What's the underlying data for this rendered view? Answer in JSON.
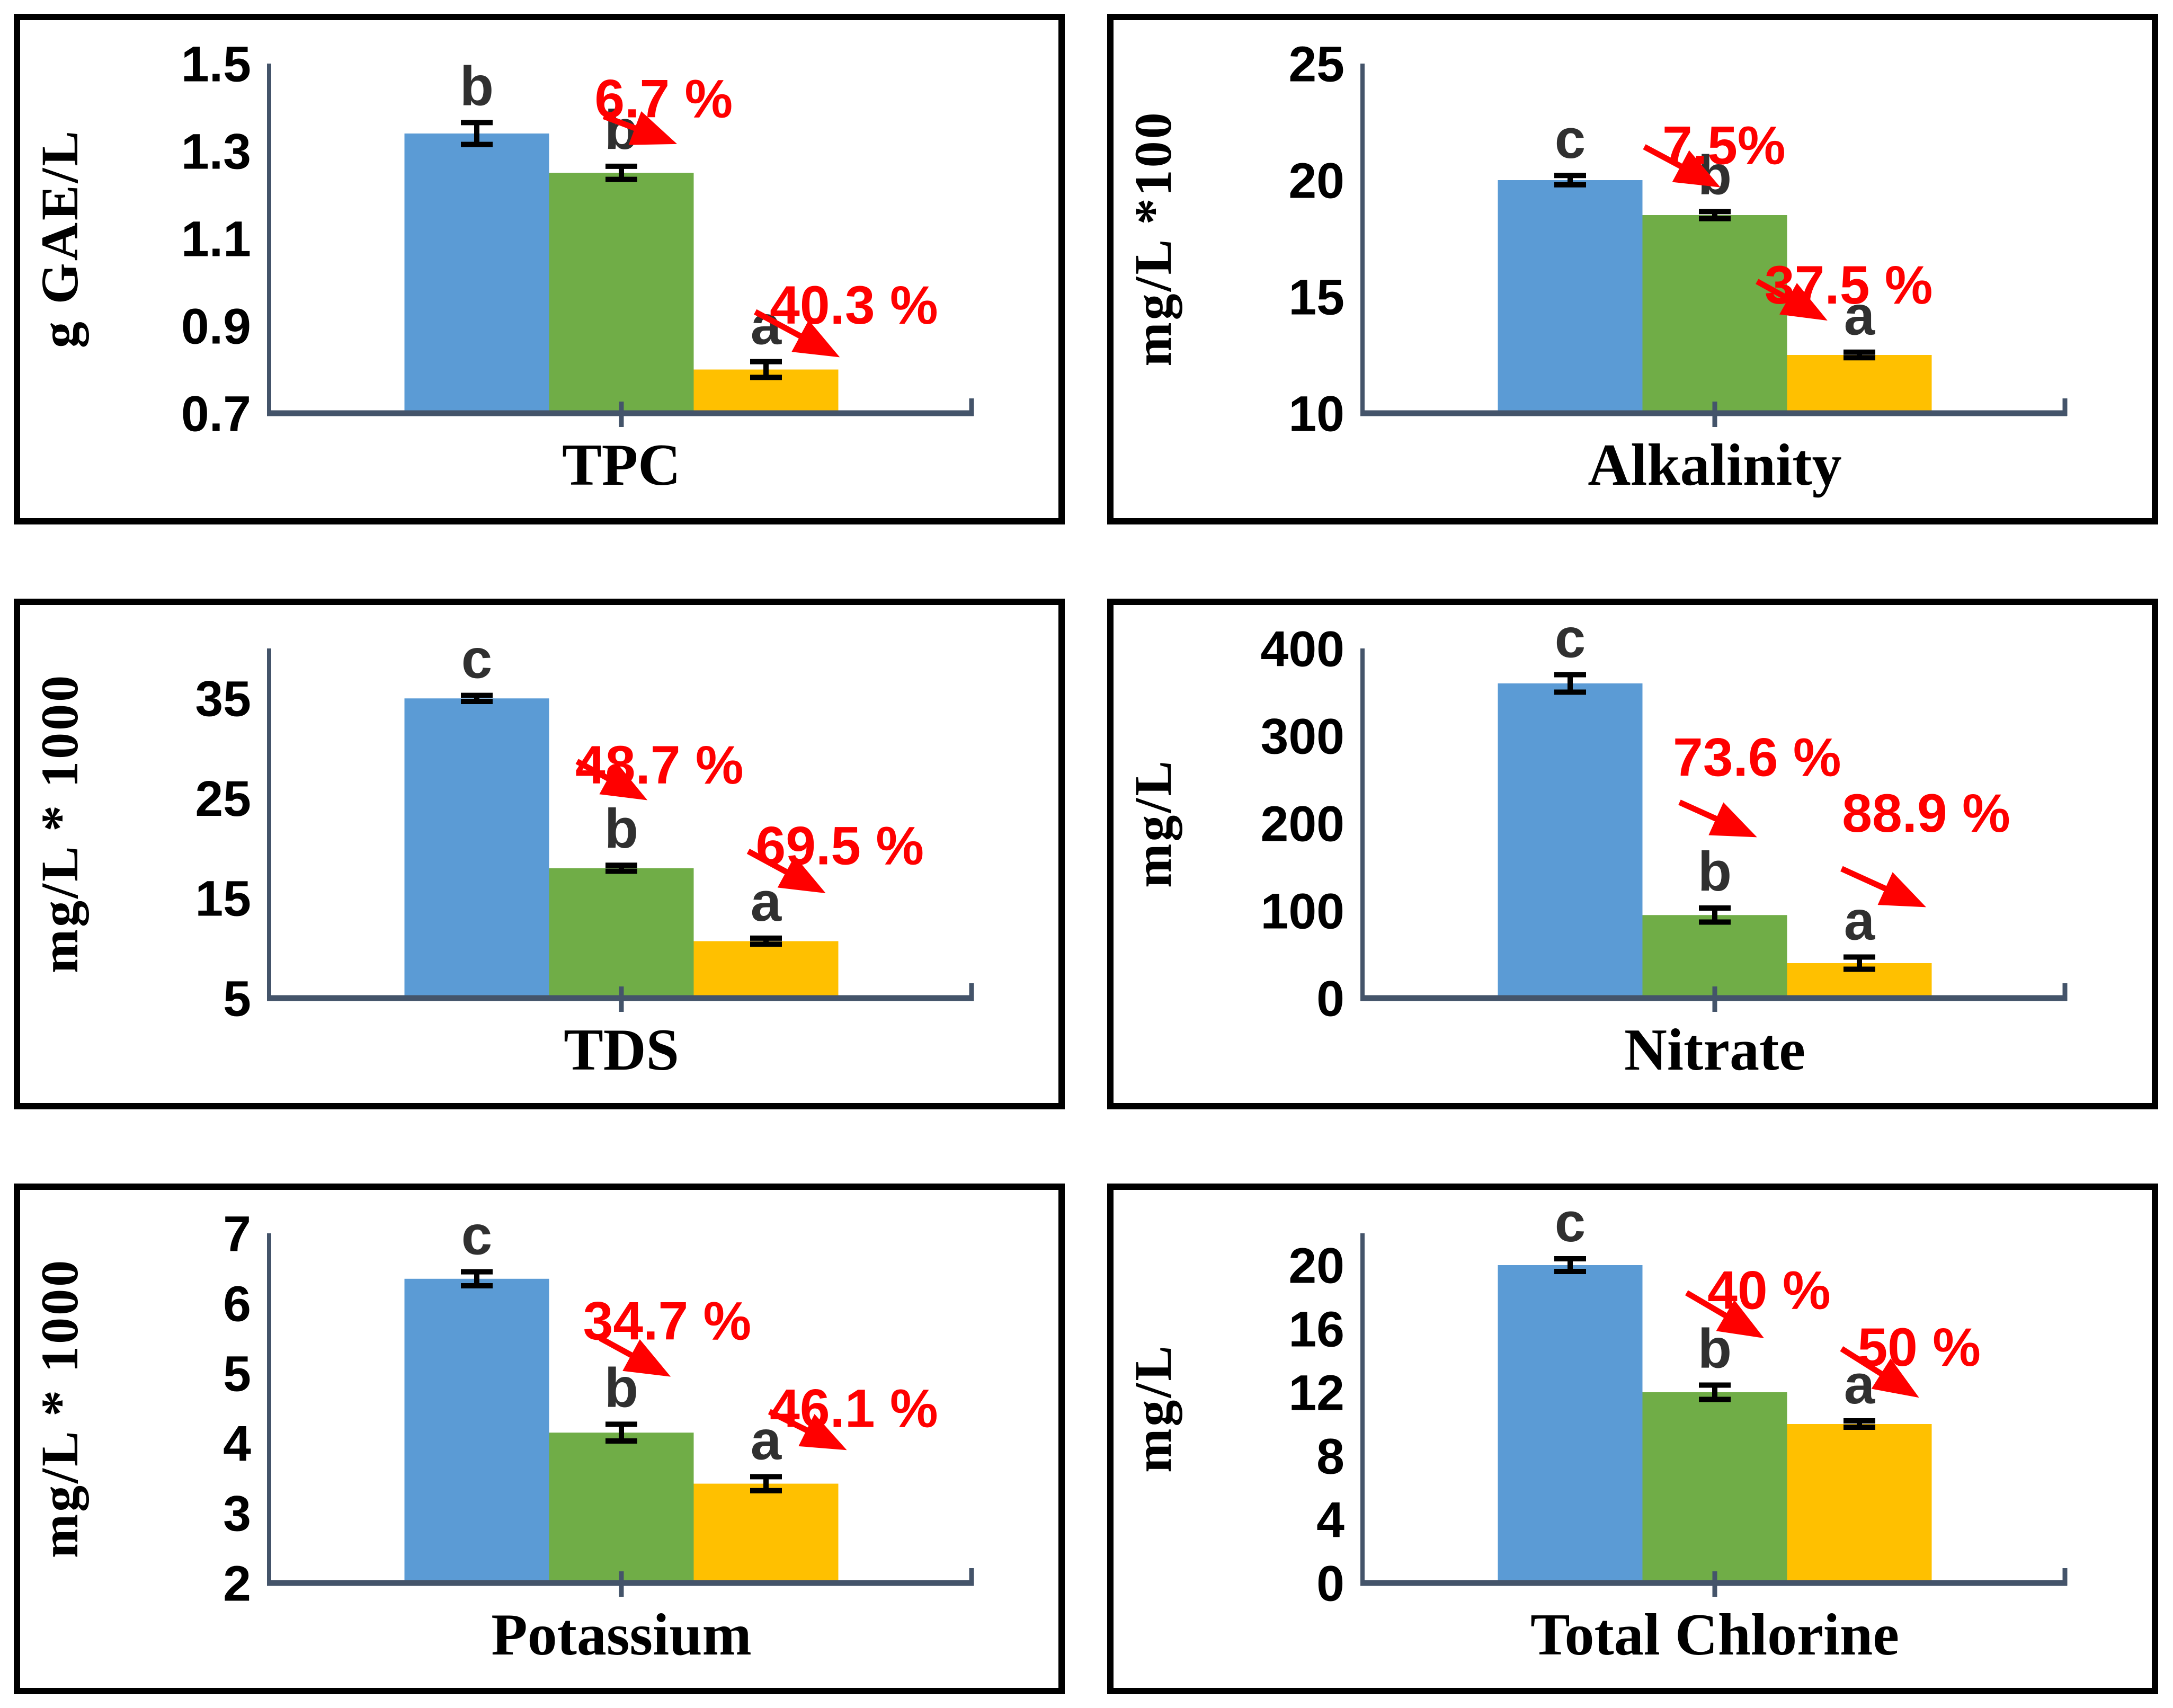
{
  "style": {
    "bar_colors": {
      "blue": "#5B9BD5",
      "green": "#70AD47",
      "orange": "#FFC000"
    },
    "axis_color": "#44546A",
    "error_bar_color": "#000000",
    "sig_letter_color": "#303030",
    "annotation_color": "#FF0000",
    "panel_border_color": "#000000",
    "background_color": "#FFFFFF"
  },
  "chart_data": [
    {
      "type": "bar",
      "xlabel": "TPC",
      "ylabel": "g GAE/L",
      "ylim": [
        0.7,
        1.5
      ],
      "yticks": [
        0.7,
        0.9,
        1.1,
        1.3,
        1.5
      ],
      "grid": false,
      "legend": "none",
      "bars": [
        {
          "color": "blue",
          "value": 1.34,
          "error": 0.025,
          "letter": "b"
        },
        {
          "color": "green",
          "value": 1.25,
          "error": 0.015,
          "letter": "b"
        },
        {
          "color": "orange",
          "value": 0.8,
          "error": 0.018,
          "letter": "a"
        }
      ],
      "annotations": [
        {
          "text": "6.7 %",
          "tx": 0.56,
          "ty": 0.1,
          "ax1": 0.475,
          "ay1": 0.151,
          "ax2": 0.579,
          "ay2": 0.23
        },
        {
          "text": "40.3 %",
          "tx": 0.83,
          "ty": 0.69,
          "ax1": 0.69,
          "ay1": 0.71,
          "ax2": 0.81,
          "ay2": 0.84
        }
      ]
    },
    {
      "type": "bar",
      "xlabel": "Alkalinity",
      "ylabel": "mg/L *100",
      "ylim": [
        10,
        25
      ],
      "yticks": [
        10,
        15,
        20,
        25
      ],
      "grid": false,
      "legend": "none",
      "bars": [
        {
          "color": "blue",
          "value": 20.0,
          "error": 0.2,
          "letter": "c"
        },
        {
          "color": "green",
          "value": 18.5,
          "error": 0.15,
          "letter": "b"
        },
        {
          "color": "orange",
          "value": 12.5,
          "error": 0.12,
          "letter": "a"
        }
      ],
      "annotations": [
        {
          "text": "7.5%",
          "tx": 0.513,
          "ty": 0.233,
          "ax1": 0.4,
          "ay1": 0.238,
          "ax2": 0.508,
          "ay2": 0.354
        },
        {
          "text": "37.5 %",
          "tx": 0.69,
          "ty": 0.632,
          "ax1": 0.56,
          "ay1": 0.623,
          "ax2": 0.66,
          "ay2": 0.735
        }
      ]
    },
    {
      "type": "bar",
      "xlabel": "TDS",
      "ylabel": "mg/L * 1000",
      "ylim": [
        5,
        40
      ],
      "yticks": [
        5,
        15,
        25,
        35
      ],
      "grid": false,
      "legend": "none",
      "bars": [
        {
          "color": "blue",
          "value": 35.0,
          "error": 0.3,
          "letter": "c"
        },
        {
          "color": "green",
          "value": 18.0,
          "error": 0.3,
          "letter": "b"
        },
        {
          "color": "orange",
          "value": 10.7,
          "error": 0.3,
          "letter": "a"
        }
      ],
      "annotations": [
        {
          "text": "48.7 %",
          "tx": 0.554,
          "ty": 0.332,
          "ax1": 0.437,
          "ay1": 0.323,
          "ax2": 0.537,
          "ay2": 0.434
        },
        {
          "text": "69.5 %",
          "tx": 0.81,
          "ty": 0.563,
          "ax1": 0.68,
          "ay1": 0.58,
          "ax2": 0.79,
          "ay2": 0.7
        }
      ]
    },
    {
      "type": "bar",
      "xlabel": "Nitrate",
      "ylabel": "mg/L",
      "ylim": [
        0,
        400
      ],
      "yticks": [
        0,
        100,
        200,
        300,
        400
      ],
      "grid": false,
      "legend": "none",
      "bars": [
        {
          "color": "blue",
          "value": 360,
          "error": 10,
          "letter": "c"
        },
        {
          "color": "green",
          "value": 95,
          "error": 8,
          "letter": "b"
        },
        {
          "color": "orange",
          "value": 40,
          "error": 7,
          "letter": "a"
        }
      ],
      "annotations": [
        {
          "text": "73.6 %",
          "tx": 0.56,
          "ty": 0.31,
          "ax1": 0.45,
          "ay1": 0.44,
          "ax2": 0.56,
          "ay2": 0.54
        },
        {
          "text": "88.9 %",
          "tx": 0.8,
          "ty": 0.47,
          "ax1": 0.68,
          "ay1": 0.63,
          "ax2": 0.8,
          "ay2": 0.74
        }
      ]
    },
    {
      "type": "bar",
      "xlabel": "Potassium",
      "ylabel": "mg/L * 1000",
      "ylim": [
        2,
        7
      ],
      "yticks": [
        2,
        3,
        4,
        5,
        6,
        7
      ],
      "grid": false,
      "legend": "none",
      "bars": [
        {
          "color": "blue",
          "value": 6.35,
          "error": 0.1,
          "letter": "c"
        },
        {
          "color": "green",
          "value": 4.15,
          "error": 0.12,
          "letter": "b"
        },
        {
          "color": "orange",
          "value": 3.42,
          "error": 0.1,
          "letter": "a"
        }
      ],
      "annotations": [
        {
          "text": "34.7 %",
          "tx": 0.565,
          "ty": 0.25,
          "ax1": 0.47,
          "ay1": 0.3,
          "ax2": 0.57,
          "ay2": 0.41
        },
        {
          "text": "46.1 %",
          "tx": 0.83,
          "ty": 0.5,
          "ax1": 0.71,
          "ay1": 0.51,
          "ax2": 0.82,
          "ay2": 0.62
        }
      ]
    },
    {
      "type": "bar",
      "xlabel": "Total Chlorine",
      "ylabel": "mg/L",
      "ylim": [
        0,
        22
      ],
      "yticks": [
        0,
        4,
        8,
        12,
        16,
        20
      ],
      "grid": false,
      "legend": "none",
      "bars": [
        {
          "color": "blue",
          "value": 20.0,
          "error": 0.4,
          "letter": "c"
        },
        {
          "color": "green",
          "value": 12.0,
          "error": 0.45,
          "letter": "b"
        },
        {
          "color": "orange",
          "value": 10.0,
          "error": 0.2,
          "letter": "a"
        }
      ],
      "annotations": [
        {
          "text": "40 %",
          "tx": 0.577,
          "ty": 0.162,
          "ax1": 0.46,
          "ay1": 0.17,
          "ax2": 0.57,
          "ay2": 0.3
        },
        {
          "text": "50 %",
          "tx": 0.79,
          "ty": 0.325,
          "ax1": 0.68,
          "ay1": 0.33,
          "ax2": 0.79,
          "ay2": 0.47
        }
      ]
    }
  ]
}
